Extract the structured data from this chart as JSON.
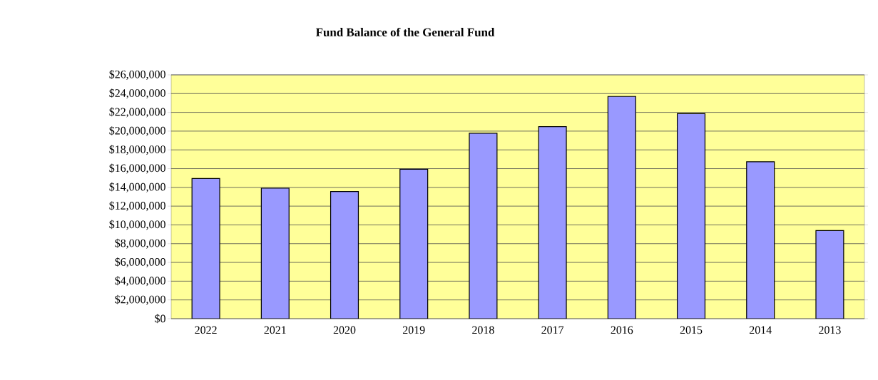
{
  "chart_data": {
    "type": "bar",
    "title": "Fund Balance of the General Fund",
    "categories": [
      "2022",
      "2021",
      "2020",
      "2019",
      "2018",
      "2017",
      "2016",
      "2015",
      "2014",
      "2013"
    ],
    "values": [
      14950000,
      13910000,
      13560000,
      15940000,
      19770000,
      20480000,
      23700000,
      21870000,
      16730000,
      9400000
    ],
    "color": "#9999ff",
    "ylim": [
      0,
      26000000
    ],
    "yticks": [
      {
        "value": 0,
        "label": "$0"
      },
      {
        "value": 2000000,
        "label": "$2,000,000"
      },
      {
        "value": 4000000,
        "label": "$4,000,000"
      },
      {
        "value": 6000000,
        "label": "$6,000,000"
      },
      {
        "value": 8000000,
        "label": "$8,000,000"
      },
      {
        "value": 10000000,
        "label": "$10,000,000"
      },
      {
        "value": 12000000,
        "label": "$12,000,000"
      },
      {
        "value": 14000000,
        "label": "$14,000,000"
      },
      {
        "value": 16000000,
        "label": "$16,000,000"
      },
      {
        "value": 18000000,
        "label": "$18,000,000"
      },
      {
        "value": 20000000,
        "label": "$20,000,000"
      },
      {
        "value": 22000000,
        "label": "$22,000,000"
      },
      {
        "value": 24000000,
        "label": "$24,000,000"
      },
      {
        "value": 26000000,
        "label": "$26,000,000"
      }
    ],
    "grid": "y"
  }
}
